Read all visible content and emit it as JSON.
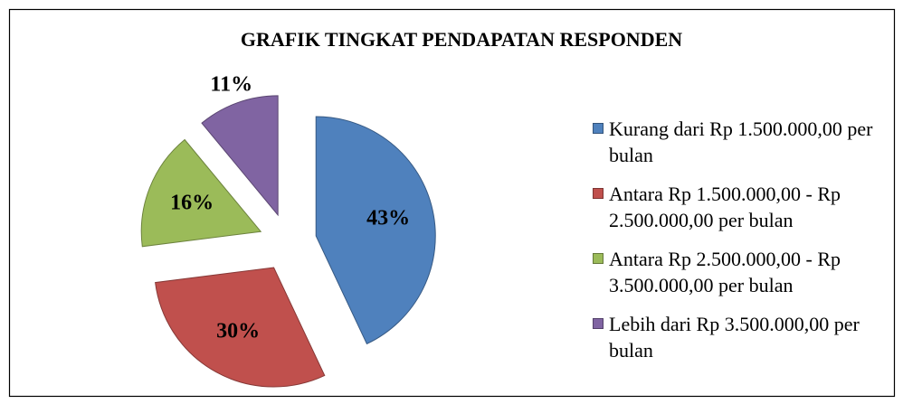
{
  "chart_data": {
    "type": "pie",
    "title": "GRAFIK TINGKAT PENDAPATAN RESPONDEN",
    "categories": [
      "Kurang dari Rp 1.500.000,00 per bulan",
      "Antara Rp 1.500.000,00 - Rp 2.500.000,00 per bulan",
      "Antara Rp 2.500.000,00 - Rp 3.500.000,00 per bulan",
      "Lebih dari Rp 3.500.000,00 per bulan"
    ],
    "values": [
      43,
      30,
      16,
      11
    ],
    "value_labels": [
      "43%",
      "30%",
      "16%",
      "11%"
    ],
    "colors": [
      "#4f81bd",
      "#c0504d",
      "#9bbb59",
      "#8064a2"
    ],
    "legend": "right"
  }
}
